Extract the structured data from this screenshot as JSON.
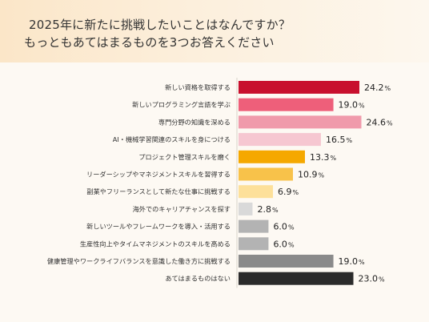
{
  "header": {
    "title_line1": "2025年に新たに挑戦したいことはなんですか？",
    "title_line2": "もっともあてはまるものを3つお答えください"
  },
  "chart_data": {
    "type": "bar",
    "orientation": "horizontal",
    "unit": "%",
    "categories": [
      "新しい資格を取得する",
      "新しいプログラミング言語を学ぶ",
      "専門分野の知識を深める",
      "AI・機械学習関連のスキルを身につける",
      "プロジェクト管理スキルを磨く",
      "リーダーシップやマネジメントスキルを習得する",
      "副業やフリーランスとして新たな仕事に挑戦する",
      "海外でのキャリアチャンスを探す",
      "新しいツールやフレームワークを導入・活用する",
      "生産性向上やタイムマネジメントのスキルを高める",
      "健康管理やワークライフバランスを意識した働き方に挑戦する",
      "あてはまるものはない"
    ],
    "values": [
      24.2,
      19.0,
      24.6,
      16.5,
      13.3,
      10.9,
      6.9,
      2.8,
      6.0,
      6.0,
      19.0,
      23.0
    ],
    "value_labels": [
      "24.2",
      "19.0",
      "24.6",
      "16.5",
      "13.3",
      "10.9",
      "6.9",
      "2.8",
      "6.0",
      "6.0",
      "19.0",
      "23.0"
    ],
    "colors": [
      "#c8102e",
      "#ee5f7a",
      "#f09aab",
      "#f6c7d1",
      "#f5a800",
      "#f8c24a",
      "#fde09a",
      "#d9d9d9",
      "#b3b3b3",
      "#b3b3b3",
      "#8a8a8a",
      "#2b2b2b"
    ],
    "xlim": [
      0,
      25
    ],
    "grid": false,
    "legend": "none"
  }
}
